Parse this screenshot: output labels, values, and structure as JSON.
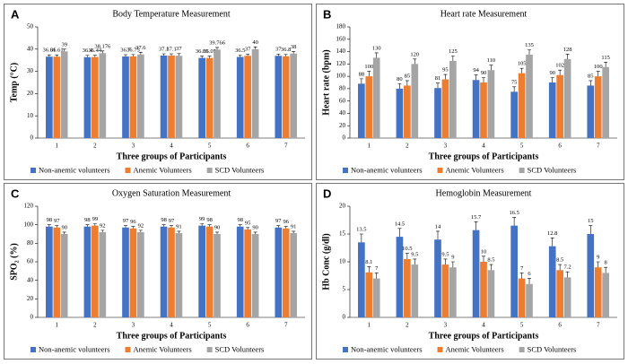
{
  "chart_data": [
    {
      "type": "bar",
      "panel_label": "A",
      "title": "Body Temperature Measurement",
      "y_label": "Temp (°C)",
      "x_label": "Three groups of Participants",
      "categories": [
        "1",
        "2",
        "3",
        "4",
        "5",
        "6",
        "7"
      ],
      "ylim": [
        0,
        50
      ],
      "yticks": [
        0,
        10,
        20,
        30,
        40,
        50
      ],
      "series": [
        {
          "name": "Non-anemic volunteers",
          "color": "#4472c4",
          "values": [
            36.61,
            36.4,
            36.7,
            37.1,
            36.05,
            36.5,
            37
          ],
          "errors": [
            0.8,
            0.8,
            0.8,
            0.8,
            0.8,
            0.8,
            0.8
          ]
        },
        {
          "name": "Anemic Volunteers",
          "color": "#ed7d31",
          "values": [
            36.61,
            36.44,
            36.75,
            37.1,
            36.05,
            37,
            36.8
          ],
          "errors": [
            0.8,
            0.8,
            0.8,
            0.8,
            0.8,
            0.8,
            0.8
          ]
        },
        {
          "name": "SCD Volunteers",
          "color": "#a5a5a5",
          "values": [
            39,
            38.176,
            37.6,
            37,
            39.766,
            40,
            38
          ],
          "errors": [
            1,
            1,
            1,
            1,
            1,
            1,
            1
          ]
        }
      ]
    },
    {
      "type": "bar",
      "panel_label": "B",
      "title": "Heart rate Measurement",
      "y_label": "Heart rate (bpm)",
      "x_label": "Three groups of Participants",
      "categories": [
        "1",
        "2",
        "3",
        "4",
        "5",
        "6",
        "7"
      ],
      "ylim": [
        0,
        180
      ],
      "yticks": [
        0,
        20,
        40,
        60,
        80,
        100,
        120,
        140,
        160,
        180
      ],
      "series": [
        {
          "name": "Non-anemic volunteers",
          "color": "#4472c4",
          "values": [
            88,
            80,
            81,
            94,
            75,
            90,
            85
          ],
          "errors": [
            8,
            8,
            8,
            8,
            8,
            8,
            8
          ]
        },
        {
          "name": "Anemic Volunteers",
          "color": "#ed7d31",
          "values": [
            100,
            85,
            95,
            90,
            105,
            102,
            100
          ],
          "errors": [
            8,
            8,
            8,
            8,
            8,
            8,
            8
          ]
        },
        {
          "name": "SCD Volunteers",
          "color": "#a5a5a5",
          "values": [
            130,
            120,
            125,
            110,
            135,
            128,
            115
          ],
          "errors": [
            8,
            8,
            8,
            8,
            8,
            8,
            8
          ]
        }
      ]
    },
    {
      "type": "bar",
      "panel_label": "C",
      "title": "Oxygen Saturation Measurement",
      "y_label": "SPO₂ (%)",
      "x_label": "Three groups of Participants",
      "categories": [
        "1",
        "2",
        "3",
        "4",
        "5",
        "6",
        "7"
      ],
      "ylim": [
        0,
        120
      ],
      "yticks": [
        0,
        20,
        40,
        60,
        80,
        100,
        120
      ],
      "series": [
        {
          "name": "Non-anemic volunteers",
          "color": "#4472c4",
          "values": [
            98,
            98,
            97,
            98,
            99,
            98,
            97
          ],
          "errors": [
            2,
            2,
            2,
            2,
            2,
            2,
            2
          ]
        },
        {
          "name": "Anemic Volunteers",
          "color": "#ed7d31",
          "values": [
            97,
            99,
            96,
            97,
            98,
            95,
            96
          ],
          "errors": [
            2,
            2,
            2,
            2,
            2,
            2,
            2
          ]
        },
        {
          "name": "SCD Volunteers",
          "color": "#a5a5a5",
          "values": [
            90,
            92,
            92,
            91,
            90,
            90,
            91
          ],
          "errors": [
            2,
            2,
            2,
            2,
            2,
            2,
            2
          ]
        }
      ]
    },
    {
      "type": "bar",
      "panel_label": "D",
      "title": "Hemoglobin Measurement",
      "y_label": "Hb Conc (g/dl)",
      "x_label": "Three groups of Participants",
      "categories": [
        "1",
        "2",
        "3",
        "4",
        "5",
        "6",
        "7"
      ],
      "ylim": [
        0,
        20
      ],
      "yticks": [
        0,
        5,
        10,
        15,
        20
      ],
      "series": [
        {
          "name": "Non-anemic volunteers",
          "color": "#4472c4",
          "values": [
            13.5,
            14.5,
            14,
            15.7,
            16.5,
            12.8,
            15
          ],
          "errors": [
            1.5,
            1.5,
            1.5,
            1.5,
            1.5,
            1.5,
            1.5
          ]
        },
        {
          "name": "Anemic Volunteers",
          "color": "#ed7d31",
          "values": [
            8.1,
            10.5,
            9.5,
            10,
            7,
            8.5,
            9
          ],
          "errors": [
            1,
            1,
            1,
            1,
            1,
            1,
            1
          ]
        },
        {
          "name": "SCD Volunteers",
          "color": "#a5a5a5",
          "values": [
            7,
            9.5,
            9,
            8.5,
            6,
            7.2,
            8
          ],
          "errors": [
            1,
            1,
            1,
            1,
            1,
            1,
            1
          ]
        }
      ]
    }
  ]
}
